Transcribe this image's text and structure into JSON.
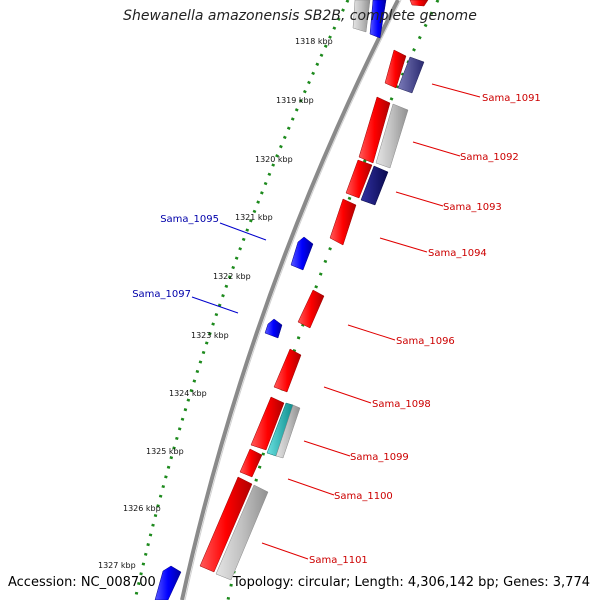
{
  "title": "Shewanella amazonensis SB2B, complete genome",
  "footer": {
    "accession": "Accession: NC_008700",
    "summary": "Topology: circular; Length: 4,306,142 bp; Genes: 3,774"
  },
  "colors": {
    "forward_cds": "#ff0000",
    "reverse_cds": "#0000ff",
    "forward_label": "#cc0000",
    "reverse_label": "#0000aa",
    "grey_feature": "#b8b8b8",
    "navy_feature": "#1a1a80",
    "slate_feature": "#4b4b96",
    "cyan_feature": "#1fbcbc",
    "backbone": "#8a8a8a",
    "ruler_dots": "#1d8a1d"
  },
  "ruler": [
    "1318 kbp",
    "1319 kbp",
    "1320 kbp",
    "1321 kbp",
    "1322 kbp",
    "1323 kbp",
    "1324 kbp",
    "1325 kbp",
    "1326 kbp",
    "1327 kbp"
  ],
  "forward_labels": [
    "Sama_1091",
    "Sama_1092",
    "Sama_1093",
    "Sama_1094",
    "Sama_1096",
    "Sama_1098",
    "Sama_1099",
    "Sama_1100",
    "Sama_1101"
  ],
  "reverse_labels": [
    "Sama_1095",
    "Sama_1097"
  ]
}
